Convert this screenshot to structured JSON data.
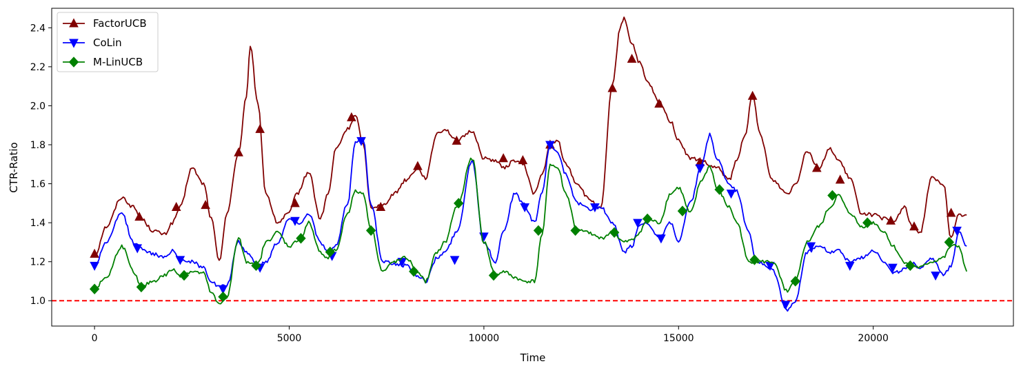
{
  "chart_data": {
    "type": "line",
    "title": "",
    "xlabel": "Time",
    "ylabel": "CTR-Ratio",
    "xlim": [
      -1100,
      23600
    ],
    "ylim": [
      0.87,
      2.5
    ],
    "xticks": [
      0,
      5000,
      10000,
      15000,
      20000
    ],
    "yticks": [
      1.0,
      1.2,
      1.4,
      1.6,
      1.8,
      2.0,
      2.2,
      2.4
    ],
    "grid": false,
    "legend_position": "top-left",
    "reference_line": {
      "y": 1.0,
      "style": "dashed",
      "color": "#ff0000"
    },
    "series": [
      {
        "name": "FactorUCB",
        "color": "#800000",
        "marker": "triangle-up",
        "x": [
          0,
          300,
          700,
          1000,
          1200,
          1500,
          1800,
          2000,
          2200,
          2500,
          2800,
          3000,
          3200,
          3400,
          3700,
          3900,
          4000,
          4200,
          4400,
          4700,
          5000,
          5200,
          5500,
          5800,
          6000,
          6200,
          6500,
          6700,
          6900,
          7100,
          7400,
          7700,
          8000,
          8300,
          8500,
          8800,
          9000,
          9300,
          9700,
          10000,
          10300,
          10500,
          10800,
          11000,
          11300,
          11500,
          11700,
          11900,
          12100,
          12400,
          12700,
          13000,
          13300,
          13500,
          13600,
          13800,
          14000,
          14200,
          14500,
          14800,
          15000,
          15300,
          15600,
          15800,
          16000,
          16300,
          16500,
          16700,
          16900,
          17100,
          17400,
          17800,
          18000,
          18300,
          18600,
          18900,
          19100,
          19400,
          19700,
          20000,
          20300,
          20500,
          20800,
          21000,
          21200,
          21500,
          21800,
          22000,
          22200,
          22400
        ],
        "y": [
          1.23,
          1.38,
          1.53,
          1.48,
          1.42,
          1.36,
          1.34,
          1.4,
          1.48,
          1.68,
          1.6,
          1.42,
          1.2,
          1.45,
          1.76,
          2.05,
          2.3,
          2.0,
          1.55,
          1.4,
          1.45,
          1.55,
          1.66,
          1.42,
          1.55,
          1.78,
          1.88,
          1.95,
          1.8,
          1.48,
          1.49,
          1.55,
          1.62,
          1.68,
          1.63,
          1.86,
          1.88,
          1.82,
          1.87,
          1.73,
          1.72,
          1.68,
          1.72,
          1.7,
          1.55,
          1.65,
          1.8,
          1.82,
          1.7,
          1.6,
          1.52,
          1.47,
          2.1,
          2.4,
          2.45,
          2.32,
          2.22,
          2.12,
          2.02,
          1.92,
          1.82,
          1.73,
          1.72,
          1.69,
          1.68,
          1.62,
          1.72,
          1.85,
          2.05,
          1.85,
          1.62,
          1.55,
          1.6,
          1.77,
          1.68,
          1.78,
          1.72,
          1.63,
          1.45,
          1.44,
          1.42,
          1.4,
          1.48,
          1.38,
          1.35,
          1.63,
          1.6,
          1.32,
          1.44,
          1.44
        ]
      },
      {
        "name": "CoLin",
        "color": "#0000ff",
        "marker": "triangle-down",
        "x": [
          0,
          300,
          700,
          1000,
          1200,
          1500,
          1800,
          2000,
          2200,
          2500,
          2800,
          3000,
          3200,
          3400,
          3700,
          3900,
          4200,
          4400,
          4700,
          5000,
          5300,
          5500,
          5800,
          6000,
          6200,
          6500,
          6700,
          6900,
          7100,
          7400,
          7700,
          8000,
          8300,
          8500,
          8800,
          9000,
          9300,
          9700,
          10000,
          10300,
          10500,
          10800,
          11000,
          11300,
          11500,
          11700,
          11900,
          12100,
          12400,
          12700,
          13000,
          13300,
          13600,
          13800,
          14000,
          14200,
          14500,
          14800,
          15000,
          15300,
          15600,
          15800,
          16000,
          16300,
          16500,
          16800,
          17000,
          17400,
          17800,
          18000,
          18300,
          18600,
          18900,
          19100,
          19400,
          19700,
          20000,
          20300,
          20500,
          20800,
          21000,
          21200,
          21500,
          21800,
          22000,
          22200,
          22400
        ],
        "y": [
          1.18,
          1.3,
          1.45,
          1.3,
          1.27,
          1.24,
          1.22,
          1.26,
          1.21,
          1.2,
          1.17,
          1.1,
          1.07,
          1.08,
          1.3,
          1.25,
          1.18,
          1.2,
          1.3,
          1.42,
          1.4,
          1.45,
          1.3,
          1.25,
          1.28,
          1.5,
          1.82,
          1.82,
          1.5,
          1.2,
          1.19,
          1.18,
          1.13,
          1.1,
          1.22,
          1.25,
          1.35,
          1.72,
          1.3,
          1.2,
          1.36,
          1.55,
          1.5,
          1.4,
          1.56,
          1.8,
          1.76,
          1.65,
          1.5,
          1.47,
          1.48,
          1.4,
          1.25,
          1.28,
          1.39,
          1.4,
          1.32,
          1.4,
          1.3,
          1.5,
          1.7,
          1.85,
          1.72,
          1.6,
          1.56,
          1.35,
          1.2,
          1.16,
          0.95,
          1.0,
          1.25,
          1.28,
          1.25,
          1.26,
          1.2,
          1.22,
          1.26,
          1.2,
          1.14,
          1.16,
          1.19,
          1.17,
          1.22,
          1.13,
          1.18,
          1.36,
          1.28
        ]
      },
      {
        "name": "M-LinUCB",
        "color": "#008000",
        "marker": "diamond",
        "x": [
          0,
          300,
          700,
          1000,
          1200,
          1500,
          1800,
          2000,
          2200,
          2500,
          2800,
          3000,
          3200,
          3400,
          3700,
          3900,
          4200,
          4400,
          4700,
          5000,
          5300,
          5500,
          5800,
          6000,
          6200,
          6500,
          6700,
          6900,
          7100,
          7400,
          7700,
          8000,
          8300,
          8500,
          8800,
          9000,
          9300,
          9700,
          10000,
          10300,
          10500,
          10800,
          11000,
          11300,
          11500,
          11700,
          11900,
          12100,
          12400,
          12700,
          13000,
          13300,
          13600,
          13800,
          14000,
          14200,
          14500,
          14800,
          15000,
          15300,
          15600,
          15800,
          16000,
          16300,
          16500,
          16800,
          17000,
          17400,
          17800,
          18000,
          18300,
          18600,
          18900,
          19100,
          19400,
          19700,
          20000,
          20300,
          20500,
          20800,
          21000,
          21200,
          21500,
          21800,
          22000,
          22200,
          22400
        ],
        "y": [
          1.06,
          1.12,
          1.28,
          1.15,
          1.07,
          1.1,
          1.13,
          1.16,
          1.13,
          1.15,
          1.14,
          1.04,
          0.98,
          1.02,
          1.32,
          1.2,
          1.19,
          1.3,
          1.35,
          1.28,
          1.32,
          1.4,
          1.25,
          1.22,
          1.26,
          1.45,
          1.56,
          1.55,
          1.37,
          1.15,
          1.2,
          1.22,
          1.15,
          1.1,
          1.25,
          1.3,
          1.48,
          1.73,
          1.3,
          1.13,
          1.15,
          1.12,
          1.1,
          1.1,
          1.35,
          1.7,
          1.68,
          1.55,
          1.36,
          1.35,
          1.32,
          1.35,
          1.3,
          1.31,
          1.35,
          1.42,
          1.4,
          1.55,
          1.58,
          1.45,
          1.62,
          1.69,
          1.57,
          1.48,
          1.4,
          1.2,
          1.2,
          1.2,
          1.05,
          1.1,
          1.3,
          1.38,
          1.48,
          1.54,
          1.45,
          1.38,
          1.4,
          1.35,
          1.28,
          1.2,
          1.18,
          1.17,
          1.2,
          1.22,
          1.28,
          1.28,
          1.15
        ]
      }
    ],
    "markers": {
      "FactorUCB": [
        [
          0,
          1.24
        ],
        [
          1150,
          1.43
        ],
        [
          2100,
          1.48
        ],
        [
          2850,
          1.49
        ],
        [
          3700,
          1.76
        ],
        [
          4250,
          1.88
        ],
        [
          5150,
          1.5
        ],
        [
          6600,
          1.94
        ],
        [
          7350,
          1.48
        ],
        [
          8300,
          1.69
        ],
        [
          9300,
          1.82
        ],
        [
          10500,
          1.73
        ],
        [
          11000,
          1.72
        ],
        [
          11700,
          1.8
        ],
        [
          13300,
          2.09
        ],
        [
          13800,
          2.24
        ],
        [
          14500,
          2.01
        ],
        [
          15550,
          1.71
        ],
        [
          16900,
          2.05
        ],
        [
          18550,
          1.68
        ],
        [
          19150,
          1.62
        ],
        [
          20450,
          1.41
        ],
        [
          21050,
          1.38
        ],
        [
          22000,
          1.45
        ]
      ],
      "CoLin": [
        [
          0,
          1.18
        ],
        [
          1100,
          1.27
        ],
        [
          2200,
          1.21
        ],
        [
          3300,
          1.06
        ],
        [
          4250,
          1.17
        ],
        [
          5150,
          1.41
        ],
        [
          6100,
          1.23
        ],
        [
          6850,
          1.82
        ],
        [
          7900,
          1.2
        ],
        [
          9250,
          1.21
        ],
        [
          10000,
          1.33
        ],
        [
          11050,
          1.48
        ],
        [
          11700,
          1.8
        ],
        [
          12850,
          1.48
        ],
        [
          13950,
          1.4
        ],
        [
          14550,
          1.32
        ],
        [
          15550,
          1.68
        ],
        [
          16350,
          1.55
        ],
        [
          17350,
          1.18
        ],
        [
          17750,
          0.98
        ],
        [
          18400,
          1.28
        ],
        [
          19400,
          1.18
        ],
        [
          20500,
          1.17
        ],
        [
          21600,
          1.13
        ],
        [
          22150,
          1.36
        ]
      ],
      "M-LinUCB": [
        [
          0,
          1.06
        ],
        [
          1200,
          1.07
        ],
        [
          2300,
          1.13
        ],
        [
          3300,
          1.02
        ],
        [
          4150,
          1.18
        ],
        [
          5300,
          1.32
        ],
        [
          6050,
          1.25
        ],
        [
          7100,
          1.36
        ],
        [
          8200,
          1.15
        ],
        [
          9350,
          1.5
        ],
        [
          10250,
          1.13
        ],
        [
          11400,
          1.36
        ],
        [
          12350,
          1.36
        ],
        [
          13350,
          1.35
        ],
        [
          14200,
          1.42
        ],
        [
          15100,
          1.46
        ],
        [
          16050,
          1.57
        ],
        [
          16950,
          1.21
        ],
        [
          18000,
          1.1
        ],
        [
          18950,
          1.54
        ],
        [
          19850,
          1.4
        ],
        [
          20950,
          1.18
        ],
        [
          21950,
          1.3
        ]
      ]
    }
  }
}
